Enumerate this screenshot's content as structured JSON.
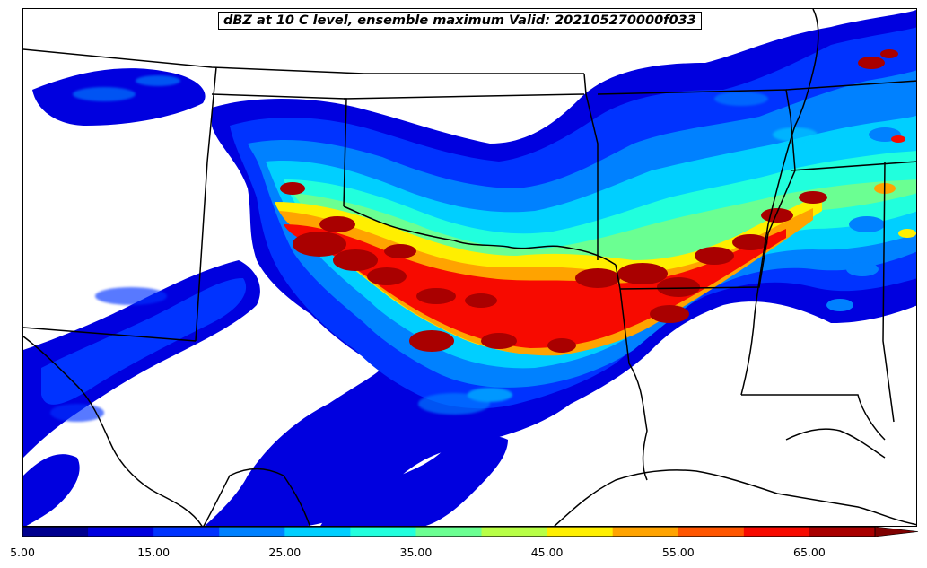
{
  "title": "dBZ at 10 C level, ensemble maximum Valid: 202105270000f033",
  "colorbar": {
    "min": 5,
    "max": 70,
    "step": 5,
    "extend": "max",
    "colors": [
      "#00008f",
      "#0000df",
      "#0033ff",
      "#0081ff",
      "#00cfff",
      "#21ffdd",
      "#6bff92",
      "#b8ff46",
      "#ffef00",
      "#ffa300",
      "#ff5600",
      "#f70a00",
      "#a90000"
    ],
    "extend_color": "#7f0000",
    "tick_labels": [
      "5.00",
      "15.00",
      "25.00",
      "35.00",
      "45.00",
      "55.00",
      "65.00"
    ]
  }
}
